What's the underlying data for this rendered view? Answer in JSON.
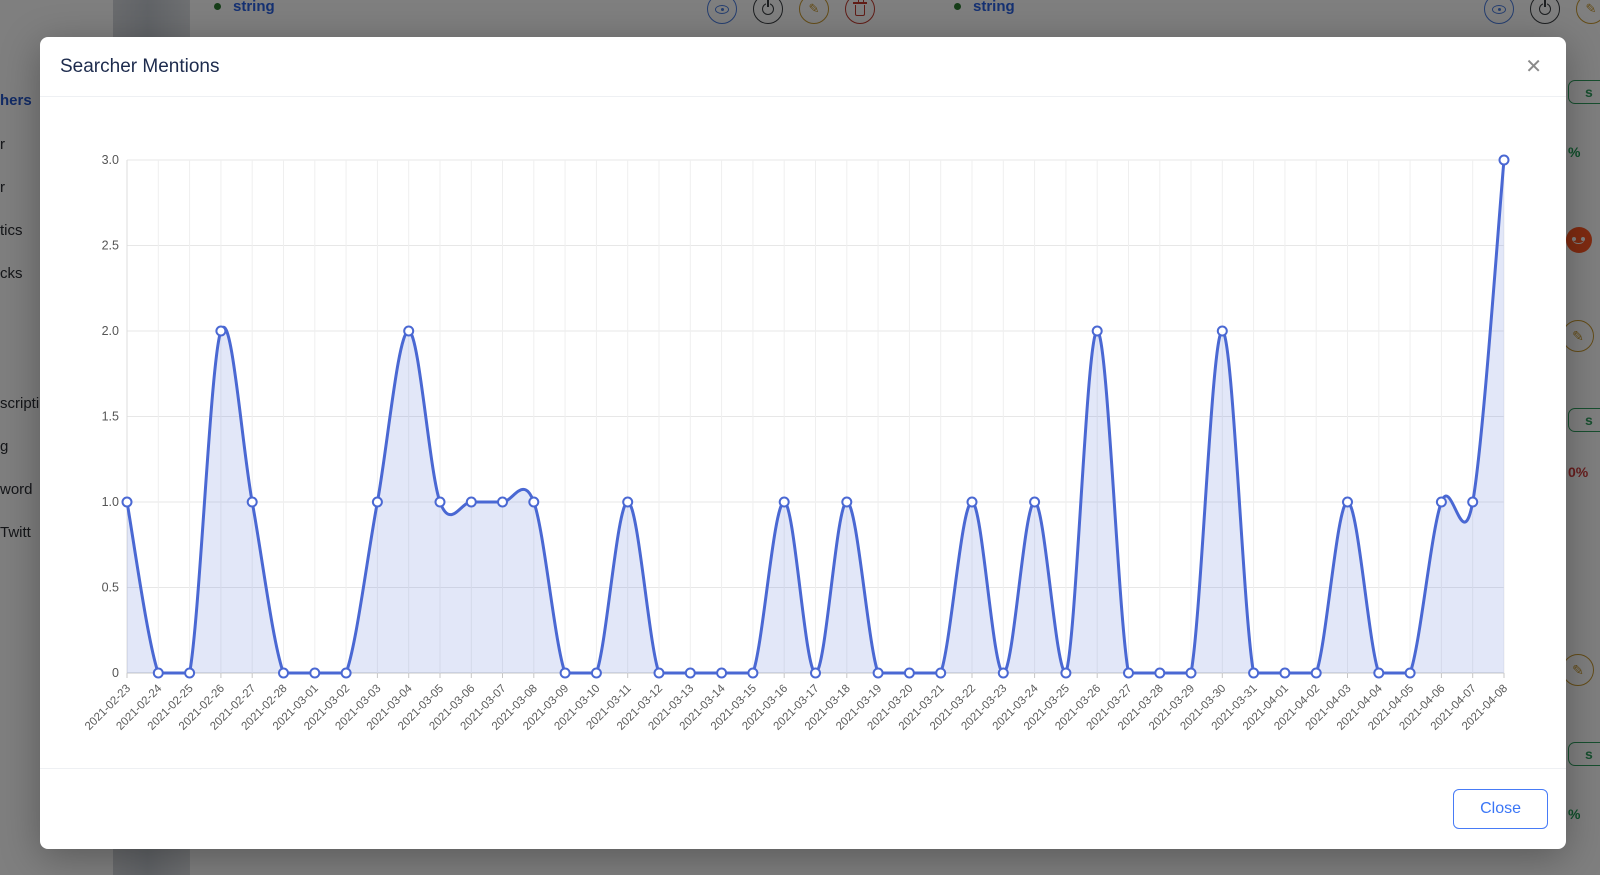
{
  "modal": {
    "title": "Searcher Mentions",
    "close_icon": "✕",
    "close_label": "Close"
  },
  "chart_data": {
    "type": "area",
    "title": "Searcher Mentions",
    "smooth": true,
    "marker": "empty-circle",
    "grid": true,
    "x_label_rotation": 45,
    "categories": [
      "2021-02-23",
      "2021-02-24",
      "2021-02-25",
      "2021-02-26",
      "2021-02-27",
      "2021-02-28",
      "2021-03-01",
      "2021-03-02",
      "2021-03-03",
      "2021-03-04",
      "2021-03-05",
      "2021-03-06",
      "2021-03-07",
      "2021-03-08",
      "2021-03-09",
      "2021-03-10",
      "2021-03-11",
      "2021-03-12",
      "2021-03-13",
      "2021-03-14",
      "2021-03-15",
      "2021-03-16",
      "2021-03-17",
      "2021-03-18",
      "2021-03-19",
      "2021-03-20",
      "2021-03-21",
      "2021-03-22",
      "2021-03-23",
      "2021-03-24",
      "2021-03-25",
      "2021-03-26",
      "2021-03-27",
      "2021-03-28",
      "2021-03-29",
      "2021-03-30",
      "2021-03-31",
      "2021-04-01",
      "2021-04-02",
      "2021-04-03",
      "2021-04-04",
      "2021-04-05",
      "2021-04-06",
      "2021-04-07",
      "2021-04-08"
    ],
    "values": [
      1,
      0,
      0,
      2,
      1,
      0,
      0,
      0,
      1,
      2,
      1,
      1,
      1,
      1,
      0,
      0,
      1,
      0,
      0,
      0,
      0,
      1,
      0,
      1,
      0,
      0,
      0,
      1,
      0,
      1,
      0,
      2,
      0,
      0,
      0,
      2,
      0,
      0,
      0,
      1,
      0,
      0,
      1,
      1,
      3
    ],
    "ylim": [
      0,
      3
    ],
    "ytick_values": [
      0,
      0.5,
      1,
      1.5,
      2,
      2.5,
      3
    ],
    "ytick_labels": [
      "0",
      "0.5",
      "1.0",
      "1.5",
      "2.0",
      "2.5",
      "3.0"
    ],
    "line_color": "#4a68d3",
    "area_color": "rgba(74,104,211,0.16)"
  },
  "background": {
    "links": [
      {
        "label": "string"
      },
      {
        "label": "string"
      }
    ],
    "sidebar_fragments": [
      "hers",
      "r",
      "r",
      "tics",
      "cks",
      "scripti",
      "g",
      "word",
      "Twitt"
    ],
    "right_fragments": {
      "badge_text": "s",
      "green_percent": "%",
      "red_percent": "0%"
    }
  }
}
